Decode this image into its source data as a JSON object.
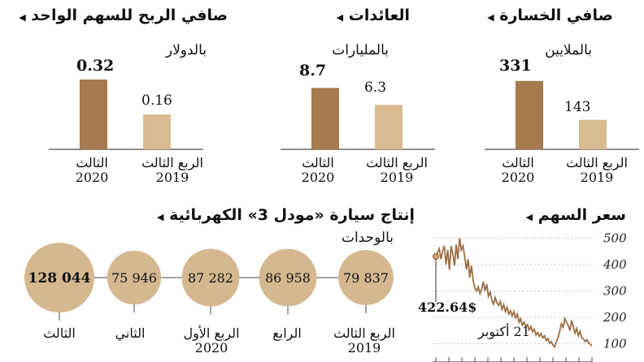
{
  "colors": {
    "dark": "#a47a4e",
    "light": "#d8bb91",
    "circle": "#d4b890",
    "line": "#9a6e42",
    "marker": "#d2a36a"
  },
  "charts": {
    "eps": {
      "title": "صافي الربح للسهم الواحد",
      "unit": "بالدولار",
      "labels": [
        [
          "الثالث",
          "2020"
        ],
        [
          "الربع الثالث",
          "2019"
        ]
      ],
      "values": [
        "0.32",
        "0.16"
      ]
    },
    "revenue": {
      "title": "العائدات",
      "unit": "بالمليارات",
      "labels": [
        [
          "الثالث",
          "2020"
        ],
        [
          "الربع الثالث",
          "2019"
        ]
      ],
      "values": [
        "8.7",
        "6.3"
      ]
    },
    "loss": {
      "title": "صافي الخسارة",
      "unit": "بالملايين",
      "labels": [
        [
          "الثالث",
          "2020"
        ],
        [
          "الربع الثالث",
          "2019"
        ]
      ],
      "values": [
        "331",
        "143"
      ]
    },
    "production": {
      "title": "إنتاج سيارة «مودل 3» الكهربائية",
      "unit": "بالوحدات",
      "values": [
        "128 044",
        "75 946",
        "87 282",
        "86 958",
        "79 837"
      ],
      "labels": [
        [
          "الثالث",
          ""
        ],
        [
          "الثاني",
          ""
        ],
        [
          "الربع الأول",
          "2020"
        ],
        [
          "الرابع",
          ""
        ],
        [
          "الربع الثالث",
          "2019"
        ]
      ]
    },
    "stock": {
      "title": "سعر السهم",
      "last_value": "422.64$",
      "last_date": "21 أكتوبر",
      "yticks": [
        "500",
        "400",
        "300",
        "200",
        "100"
      ]
    }
  },
  "chart_data": [
    {
      "type": "bar",
      "title": "صافي الربح للسهم الواحد",
      "ylabel": "بالدولار",
      "categories": [
        "الثالث 2020",
        "الربع الثالث 2019"
      ],
      "values": [
        0.32,
        0.16
      ]
    },
    {
      "type": "bar",
      "title": "العائدات",
      "ylabel": "بالمليارات",
      "categories": [
        "الثالث 2020",
        "الربع الثالث 2019"
      ],
      "values": [
        8.7,
        6.3
      ]
    },
    {
      "type": "bar",
      "title": "صافي الخسارة",
      "ylabel": "بالملايين",
      "categories": [
        "الثالث 2020",
        "الربع الثالث 2019"
      ],
      "values": [
        331,
        143
      ]
    },
    {
      "type": "bubble",
      "title": "إنتاج سيارة «مودل 3» الكهربائية",
      "ylabel": "بالوحدات",
      "categories": [
        "الثالث",
        "الثاني",
        "الربع الأول 2020",
        "الرابع",
        "الربع الثالث 2019"
      ],
      "values": [
        128044,
        75946,
        87282,
        86958,
        79837
      ]
    },
    {
      "type": "line",
      "title": "سعر السهم",
      "ylim": [
        80,
        510
      ],
      "yticks": [
        500,
        400,
        300,
        200,
        100
      ],
      "annotation": "422.64$ 21 أكتوبر",
      "values": [
        430,
        445,
        460,
        420,
        450,
        470,
        400,
        455,
        380,
        470,
        440,
        395,
        475,
        420,
        500,
        455,
        470,
        430,
        380,
        420,
        350,
        395,
        340,
        310,
        300,
        315,
        290,
        305,
        335,
        300,
        325,
        280,
        295,
        265,
        250,
        275,
        255,
        245,
        260,
        230,
        248,
        222,
        238,
        212,
        225,
        205,
        222,
        198,
        212,
        182,
        195,
        170,
        182,
        165,
        172,
        152,
        165,
        145,
        155,
        133,
        142,
        128,
        138,
        122,
        130,
        112,
        120,
        102,
        108,
        95,
        88,
        108,
        122,
        148,
        175,
        162,
        195,
        182,
        170,
        150,
        188,
        165,
        140,
        158,
        130,
        148,
        122,
        118,
        108,
        115,
        105,
        98,
        92
      ]
    }
  ]
}
